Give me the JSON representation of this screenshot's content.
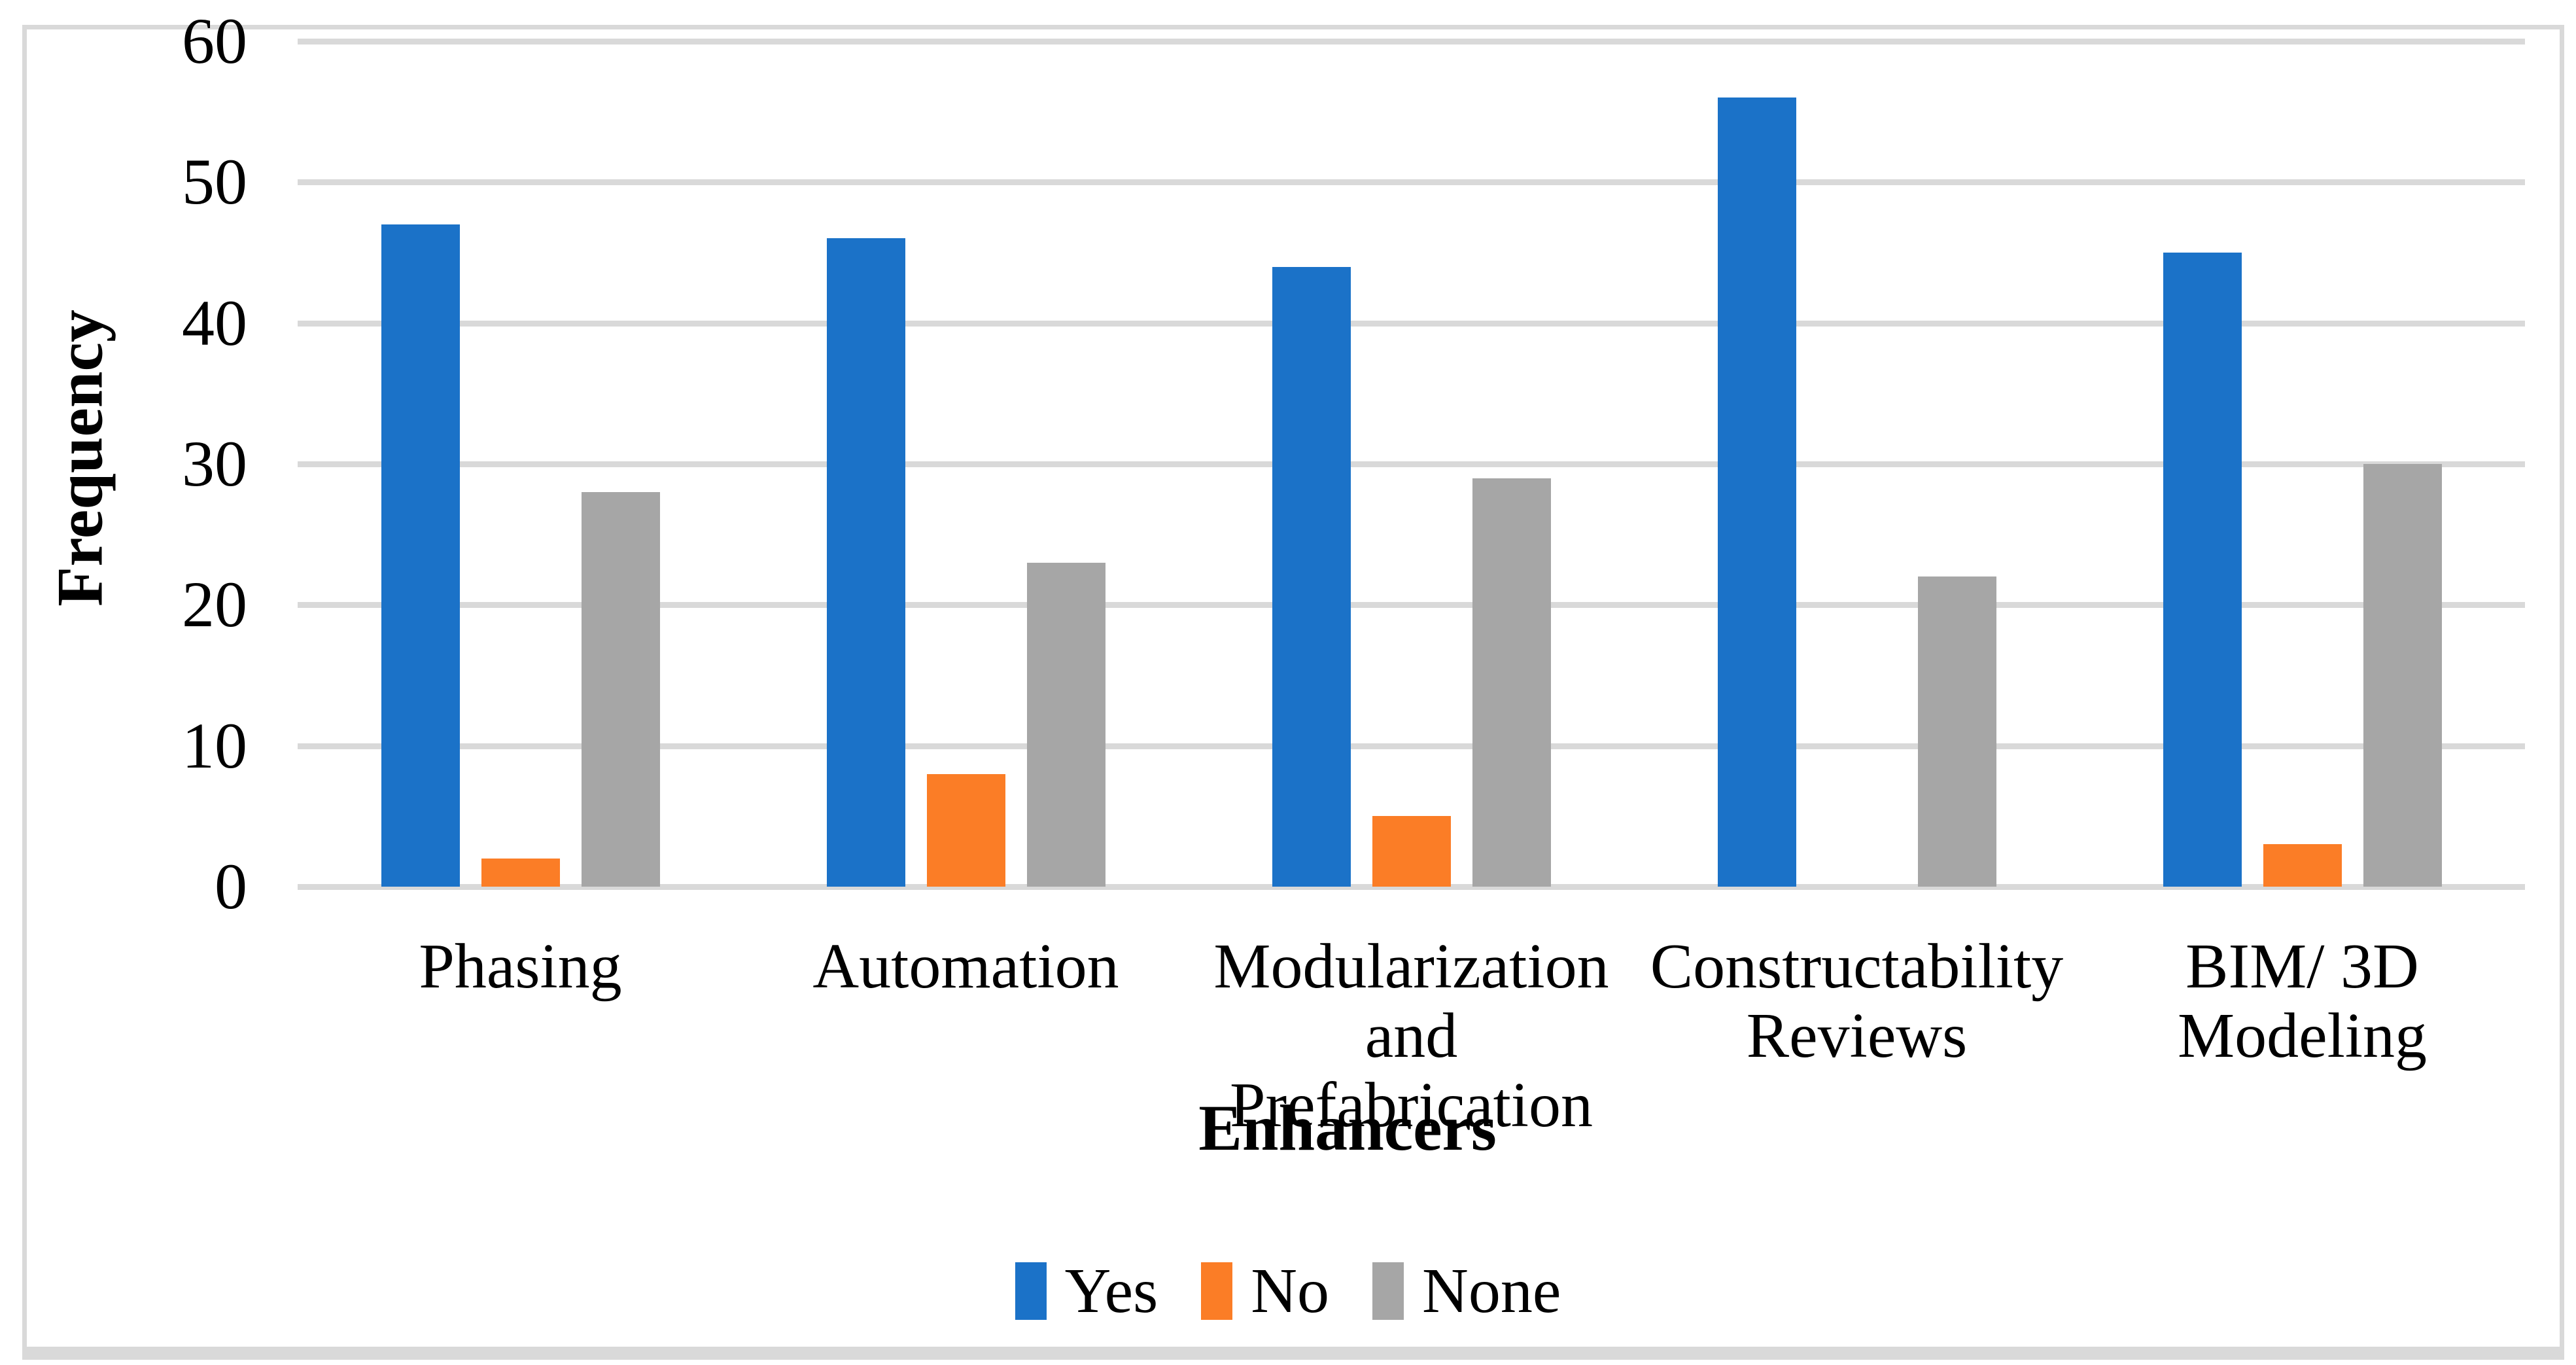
{
  "figure": {
    "background_color": "#FFFFFF",
    "border_color": "#D9D9D9",
    "gridline_color": "#D9D9D9"
  },
  "axes": {
    "y_title": "Frequency",
    "x_title": "Enhancers"
  },
  "legend": {
    "items": [
      {
        "label": "Yes",
        "color": "#1B72C8",
        "swatch": "blue-square-icon"
      },
      {
        "label": "No",
        "color": "#FB7D26",
        "swatch": "orange-square-icon"
      },
      {
        "label": "None",
        "color": "#A6A6A6",
        "swatch": "gray-square-icon"
      }
    ]
  },
  "chart_data": {
    "type": "bar",
    "title": "",
    "xlabel": "Enhancers",
    "ylabel": "Frequency",
    "categories": [
      "Phasing",
      "Automation",
      "Modularization and Prefabrication",
      "Constructability Reviews",
      "BIM/ 3D Modeling"
    ],
    "category_label_lines": [
      [
        "Phasing"
      ],
      [
        "Automation"
      ],
      [
        "Modularization",
        "and Prefabrication"
      ],
      [
        "Constructability",
        "Reviews"
      ],
      [
        "BIM/ 3D",
        "Modeling"
      ]
    ],
    "series": [
      {
        "name": "Yes",
        "color": "#1B72C8",
        "values": [
          47,
          46,
          44,
          56,
          45
        ]
      },
      {
        "name": "No",
        "color": "#FB7D26",
        "values": [
          2,
          8,
          5,
          0,
          3
        ]
      },
      {
        "name": "None",
        "color": "#A6A6A6",
        "values": [
          28,
          23,
          29,
          22,
          30
        ]
      }
    ],
    "ylim": [
      0,
      60
    ],
    "yticks": [
      0,
      10,
      20,
      30,
      40,
      50,
      60
    ],
    "grid": "horizontal",
    "legend_position": "bottom"
  }
}
